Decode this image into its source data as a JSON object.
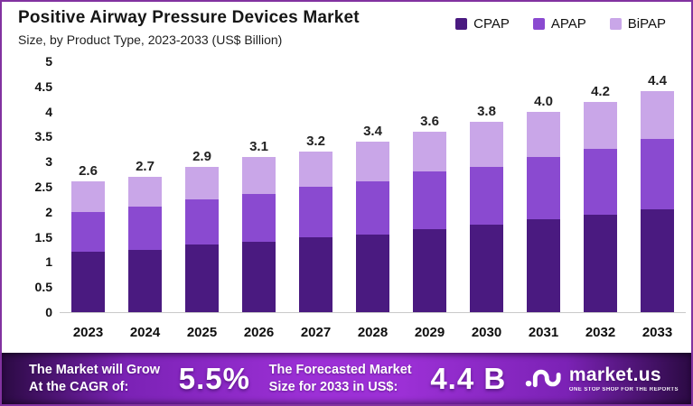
{
  "header": {
    "title": "Positive Airway Pressure Devices Market",
    "subtitle": "Size, by Product Type, 2023-2033 (US$ Billion)"
  },
  "legend": [
    {
      "label": "CPAP",
      "color": "#4a1a80"
    },
    {
      "label": "APAP",
      "color": "#8a4ad0"
    },
    {
      "label": "BiPAP",
      "color": "#c9a6e8"
    }
  ],
  "chart_data": {
    "type": "bar",
    "stacked": true,
    "title": "Positive Airway Pressure Devices Market",
    "subtitle": "Size, by Product Type, 2023-2033 (US$ Billion)",
    "categories": [
      "2023",
      "2024",
      "2025",
      "2026",
      "2027",
      "2028",
      "2029",
      "2030",
      "2031",
      "2032",
      "2033"
    ],
    "series": [
      {
        "name": "CPAP",
        "color": "#4a1a80",
        "values": [
          1.2,
          1.25,
          1.35,
          1.4,
          1.5,
          1.55,
          1.65,
          1.75,
          1.85,
          1.95,
          2.05
        ]
      },
      {
        "name": "APAP",
        "color": "#8a4ad0",
        "values": [
          0.8,
          0.85,
          0.9,
          0.95,
          1.0,
          1.05,
          1.15,
          1.15,
          1.25,
          1.3,
          1.4
        ]
      },
      {
        "name": "BiPAP",
        "color": "#c9a6e8",
        "values": [
          0.6,
          0.6,
          0.65,
          0.75,
          0.7,
          0.8,
          0.8,
          0.9,
          0.9,
          0.95,
          0.95
        ]
      }
    ],
    "totals_labels": [
      "2.6",
      "2.7",
      "2.9",
      "3.1",
      "3.2",
      "3.4",
      "3.6",
      "3.8",
      "4.0",
      "4.2",
      "4.4"
    ],
    "xlabel": "",
    "ylabel": "",
    "ylim": [
      0,
      5
    ],
    "yticks": [
      "5",
      "4.5",
      "4",
      "3.5",
      "3",
      "2.5",
      "2",
      "1.5",
      "1",
      "0.5",
      "0"
    ],
    "grid": false,
    "legend_position": "top-right"
  },
  "banner": {
    "cagr_line1": "The Market will Grow",
    "cagr_line2": "At the CAGR of:",
    "cagr_value": "5.5%",
    "forecast_line1": "The Forecasted Market",
    "forecast_line2": "Size for 2033 in US$:",
    "forecast_value": "4.4 B",
    "logo_name": "market.us",
    "logo_tagline": "ONE STOP SHOP FOR THE REPORTS"
  },
  "colors": {
    "border": "#8232a0",
    "banner_dark": "#2b0a43",
    "banner_bright": "#9c30d6",
    "baseline": "#c9c9c9",
    "text_dark": "#111111"
  }
}
